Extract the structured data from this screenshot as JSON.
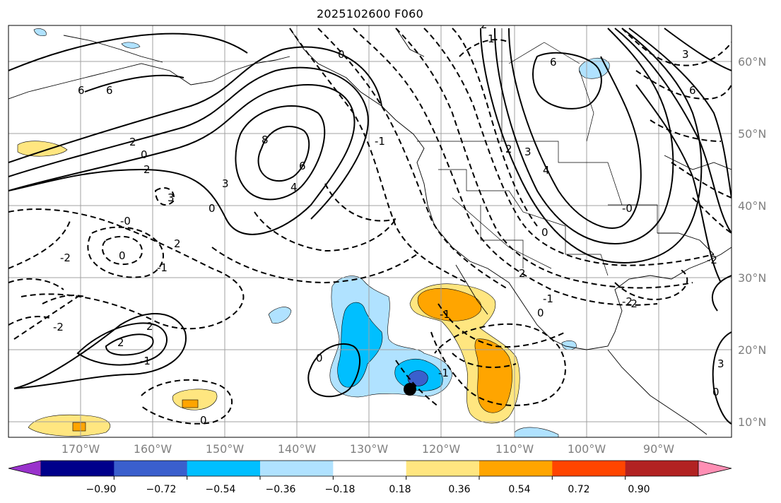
{
  "title": "2025102600 F060",
  "lon_labels": [
    "170°W",
    "160°W",
    "150°W",
    "140°W",
    "130°W",
    "120°W",
    "110°W",
    "100°W",
    "90°W"
  ],
  "lat_labels": [
    "60°N",
    "50°N",
    "40°N",
    "30°N",
    "20°N",
    "10°N"
  ],
  "colorbar": {
    "colors": [
      "#9932cc",
      "#00008b",
      "#3a5fcd",
      "#00bfff",
      "#b0e2ff",
      "#ffffff",
      "#ffe680",
      "#ffa500",
      "#ff4500",
      "#b22222",
      "#ff8fb4"
    ],
    "ticks": [
      "−0.90",
      "−0.72",
      "−0.54",
      "−0.36",
      "−0.18",
      "0.18",
      "0.36",
      "0.54",
      "0.72",
      "0.90"
    ]
  },
  "contour_labels": [
    "6",
    "6",
    "8",
    "6",
    "4",
    "2",
    "0",
    "3",
    "2",
    "0",
    "0",
    "2",
    "-2",
    "3",
    "2",
    "-1",
    "-0",
    "-2",
    "2",
    "-1",
    "-2",
    "-1",
    "2",
    "0",
    "0",
    "0",
    "-1",
    "-2",
    "4",
    "3",
    "2",
    "6",
    "6",
    "3",
    "0",
    "1",
    "2",
    "0",
    "0",
    "-2",
    "3",
    "-1",
    "-1",
    "-0"
  ]
}
